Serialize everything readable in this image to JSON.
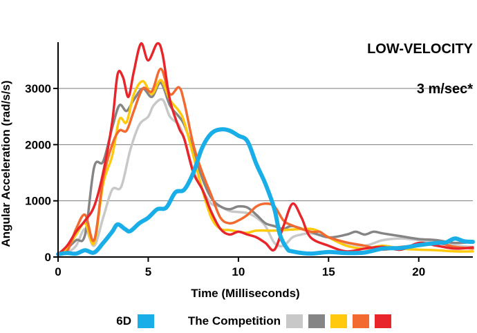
{
  "chart_data": {
    "type": "line",
    "title": "",
    "xlabel": "Time (Milliseconds)",
    "ylabel": "Angular Acceleration (rad/s/s)",
    "xlim": [
      0,
      23
    ],
    "ylim": [
      0,
      3800
    ],
    "x_ticks": [
      0,
      5,
      10,
      15,
      20
    ],
    "y_ticks": [
      0,
      1000,
      2000,
      3000
    ],
    "grid": "horizontal",
    "annotations": [
      "LOW-VELOCITY",
      "3 m/sec*"
    ],
    "legend": {
      "placement": "bottom",
      "primary_label": "6D",
      "competition_label": "The Competition"
    },
    "series": [
      {
        "id": "6d",
        "group": "6D",
        "color": "#1aaee8",
        "points": [
          [
            0,
            50
          ],
          [
            0.5,
            70
          ],
          [
            1,
            60
          ],
          [
            1.5,
            120
          ],
          [
            2,
            80
          ],
          [
            2.5,
            250
          ],
          [
            3,
            450
          ],
          [
            3.3,
            580
          ],
          [
            3.7,
            500
          ],
          [
            4,
            460
          ],
          [
            4.5,
            600
          ],
          [
            5,
            700
          ],
          [
            5.5,
            850
          ],
          [
            6,
            880
          ],
          [
            6.5,
            1150
          ],
          [
            7,
            1200
          ],
          [
            7.5,
            1500
          ],
          [
            8,
            1950
          ],
          [
            8.5,
            2200
          ],
          [
            9,
            2270
          ],
          [
            9.5,
            2250
          ],
          [
            10,
            2160
          ],
          [
            10.5,
            2060
          ],
          [
            11,
            1650
          ],
          [
            11.5,
            1300
          ],
          [
            12,
            850
          ],
          [
            12.3,
            400
          ],
          [
            12.7,
            150
          ],
          [
            13,
            100
          ],
          [
            14,
            60
          ],
          [
            15,
            90
          ],
          [
            16,
            70
          ],
          [
            17,
            80
          ],
          [
            18,
            150
          ],
          [
            19,
            160
          ],
          [
            20,
            210
          ],
          [
            21,
            250
          ],
          [
            21.5,
            260
          ],
          [
            22,
            330
          ],
          [
            22.5,
            280
          ],
          [
            23,
            270
          ]
        ]
      },
      {
        "id": "comp-light-gray",
        "group": "The Competition",
        "color": "#c8c8c8",
        "points": [
          [
            0,
            50
          ],
          [
            0.5,
            80
          ],
          [
            1,
            200
          ],
          [
            1.5,
            500
          ],
          [
            2,
            200
          ],
          [
            2.5,
            700
          ],
          [
            3,
            1200
          ],
          [
            3.5,
            1250
          ],
          [
            4,
            1900
          ],
          [
            4.5,
            2350
          ],
          [
            5,
            2500
          ],
          [
            5.3,
            2700
          ],
          [
            5.8,
            2800
          ],
          [
            6.2,
            2500
          ],
          [
            6.7,
            2350
          ],
          [
            7,
            2100
          ],
          [
            7.5,
            1550
          ],
          [
            8,
            1200
          ],
          [
            8.5,
            950
          ],
          [
            9,
            900
          ],
          [
            9.5,
            820
          ],
          [
            10,
            800
          ],
          [
            10.5,
            780
          ],
          [
            11,
            700
          ],
          [
            11.5,
            550
          ],
          [
            12,
            250
          ],
          [
            12.5,
            200
          ],
          [
            13,
            350
          ],
          [
            13.5,
            400
          ],
          [
            14,
            420
          ],
          [
            15,
            350
          ],
          [
            16,
            250
          ],
          [
            17,
            200
          ],
          [
            18,
            300
          ],
          [
            19,
            330
          ],
          [
            20,
            300
          ],
          [
            21,
            250
          ],
          [
            22,
            200
          ],
          [
            23,
            180
          ]
        ]
      },
      {
        "id": "comp-dark-gray",
        "group": "The Competition",
        "color": "#858585",
        "points": [
          [
            0,
            50
          ],
          [
            0.5,
            150
          ],
          [
            1,
            300
          ],
          [
            1.5,
            400
          ],
          [
            2,
            1600
          ],
          [
            2.5,
            1700
          ],
          [
            3,
            2300
          ],
          [
            3.4,
            2700
          ],
          [
            3.8,
            2600
          ],
          [
            4.2,
            2800
          ],
          [
            4.7,
            3000
          ],
          [
            5.2,
            2850
          ],
          [
            5.7,
            3100
          ],
          [
            6.2,
            2700
          ],
          [
            6.7,
            2500
          ],
          [
            7,
            2350
          ],
          [
            7.5,
            1900
          ],
          [
            8,
            1400
          ],
          [
            8.5,
            1050
          ],
          [
            9,
            900
          ],
          [
            9.5,
            850
          ],
          [
            10,
            900
          ],
          [
            10.5,
            880
          ],
          [
            11,
            750
          ],
          [
            11.5,
            600
          ],
          [
            12,
            550
          ],
          [
            12.5,
            500
          ],
          [
            13,
            550
          ],
          [
            14,
            450
          ],
          [
            15,
            350
          ],
          [
            16,
            400
          ],
          [
            16.5,
            450
          ],
          [
            17,
            400
          ],
          [
            17.5,
            450
          ],
          [
            18,
            420
          ],
          [
            19,
            370
          ],
          [
            20,
            320
          ],
          [
            21,
            300
          ],
          [
            22,
            250
          ],
          [
            23,
            270
          ]
        ]
      },
      {
        "id": "comp-yellow",
        "group": "The Competition",
        "color": "#ffc90e",
        "points": [
          [
            0,
            50
          ],
          [
            0.5,
            150
          ],
          [
            1,
            400
          ],
          [
            1.5,
            600
          ],
          [
            2,
            250
          ],
          [
            2.5,
            1300
          ],
          [
            3,
            1800
          ],
          [
            3.4,
            2450
          ],
          [
            3.8,
            2400
          ],
          [
            4.2,
            2900
          ],
          [
            4.7,
            3130
          ],
          [
            5.2,
            2900
          ],
          [
            5.7,
            3150
          ],
          [
            6.2,
            2800
          ],
          [
            6.7,
            2600
          ],
          [
            7,
            2400
          ],
          [
            7.5,
            1800
          ],
          [
            8,
            1200
          ],
          [
            8.5,
            700
          ],
          [
            9,
            500
          ],
          [
            9.5,
            480
          ],
          [
            10,
            450
          ],
          [
            10.5,
            430
          ],
          [
            11,
            470
          ],
          [
            12,
            470
          ],
          [
            13,
            490
          ],
          [
            14,
            500
          ],
          [
            14.5,
            450
          ],
          [
            15,
            350
          ],
          [
            16,
            200
          ],
          [
            17,
            150
          ],
          [
            18,
            200
          ],
          [
            19,
            150
          ],
          [
            20,
            130
          ],
          [
            21,
            120
          ],
          [
            22,
            100
          ],
          [
            23,
            100
          ]
        ]
      },
      {
        "id": "comp-orange",
        "group": "The Competition",
        "color": "#f26a2f",
        "points": [
          [
            0,
            50
          ],
          [
            0.5,
            100
          ],
          [
            1,
            500
          ],
          [
            1.5,
            750
          ],
          [
            2,
            300
          ],
          [
            2.5,
            1400
          ],
          [
            3,
            2000
          ],
          [
            3.4,
            2250
          ],
          [
            3.8,
            2250
          ],
          [
            4.2,
            2600
          ],
          [
            4.7,
            3000
          ],
          [
            5.2,
            2950
          ],
          [
            5.7,
            3350
          ],
          [
            6.2,
            2900
          ],
          [
            6.7,
            3020
          ],
          [
            7,
            2750
          ],
          [
            7.5,
            2000
          ],
          [
            8,
            1500
          ],
          [
            8.5,
            1100
          ],
          [
            9,
            700
          ],
          [
            9.5,
            600
          ],
          [
            10,
            650
          ],
          [
            10.5,
            750
          ],
          [
            11,
            900
          ],
          [
            11.5,
            950
          ],
          [
            12,
            900
          ],
          [
            12.5,
            650
          ],
          [
            13,
            560
          ],
          [
            14,
            450
          ],
          [
            14.5,
            450
          ],
          [
            15,
            350
          ],
          [
            16,
            260
          ],
          [
            17,
            200
          ],
          [
            18,
            130
          ],
          [
            19,
            180
          ],
          [
            20,
            200
          ],
          [
            21,
            250
          ],
          [
            22,
            180
          ],
          [
            23,
            150
          ]
        ]
      },
      {
        "id": "comp-red",
        "group": "The Competition",
        "color": "#e8252b",
        "points": [
          [
            0,
            50
          ],
          [
            0.5,
            200
          ],
          [
            1,
            450
          ],
          [
            1.5,
            650
          ],
          [
            2,
            900
          ],
          [
            2.5,
            1500
          ],
          [
            3,
            2400
          ],
          [
            3.3,
            3250
          ],
          [
            3.6,
            3200
          ],
          [
            3.9,
            2850
          ],
          [
            4.2,
            3300
          ],
          [
            4.6,
            3800
          ],
          [
            5,
            3500
          ],
          [
            5.5,
            3800
          ],
          [
            5.8,
            3600
          ],
          [
            6.2,
            2800
          ],
          [
            6.7,
            2300
          ],
          [
            7,
            2100
          ],
          [
            7.5,
            1500
          ],
          [
            8,
            1200
          ],
          [
            8.5,
            800
          ],
          [
            9,
            500
          ],
          [
            9.5,
            400
          ],
          [
            10,
            450
          ],
          [
            10.5,
            400
          ],
          [
            11,
            350
          ],
          [
            11.5,
            250
          ],
          [
            12,
            130
          ],
          [
            12.5,
            550
          ],
          [
            13,
            950
          ],
          [
            13.5,
            700
          ],
          [
            14,
            350
          ],
          [
            15,
            200
          ],
          [
            16,
            100
          ],
          [
            17,
            150
          ],
          [
            18,
            180
          ],
          [
            19,
            130
          ],
          [
            20,
            250
          ],
          [
            21,
            200
          ],
          [
            22,
            150
          ],
          [
            23,
            170
          ]
        ]
      }
    ]
  }
}
